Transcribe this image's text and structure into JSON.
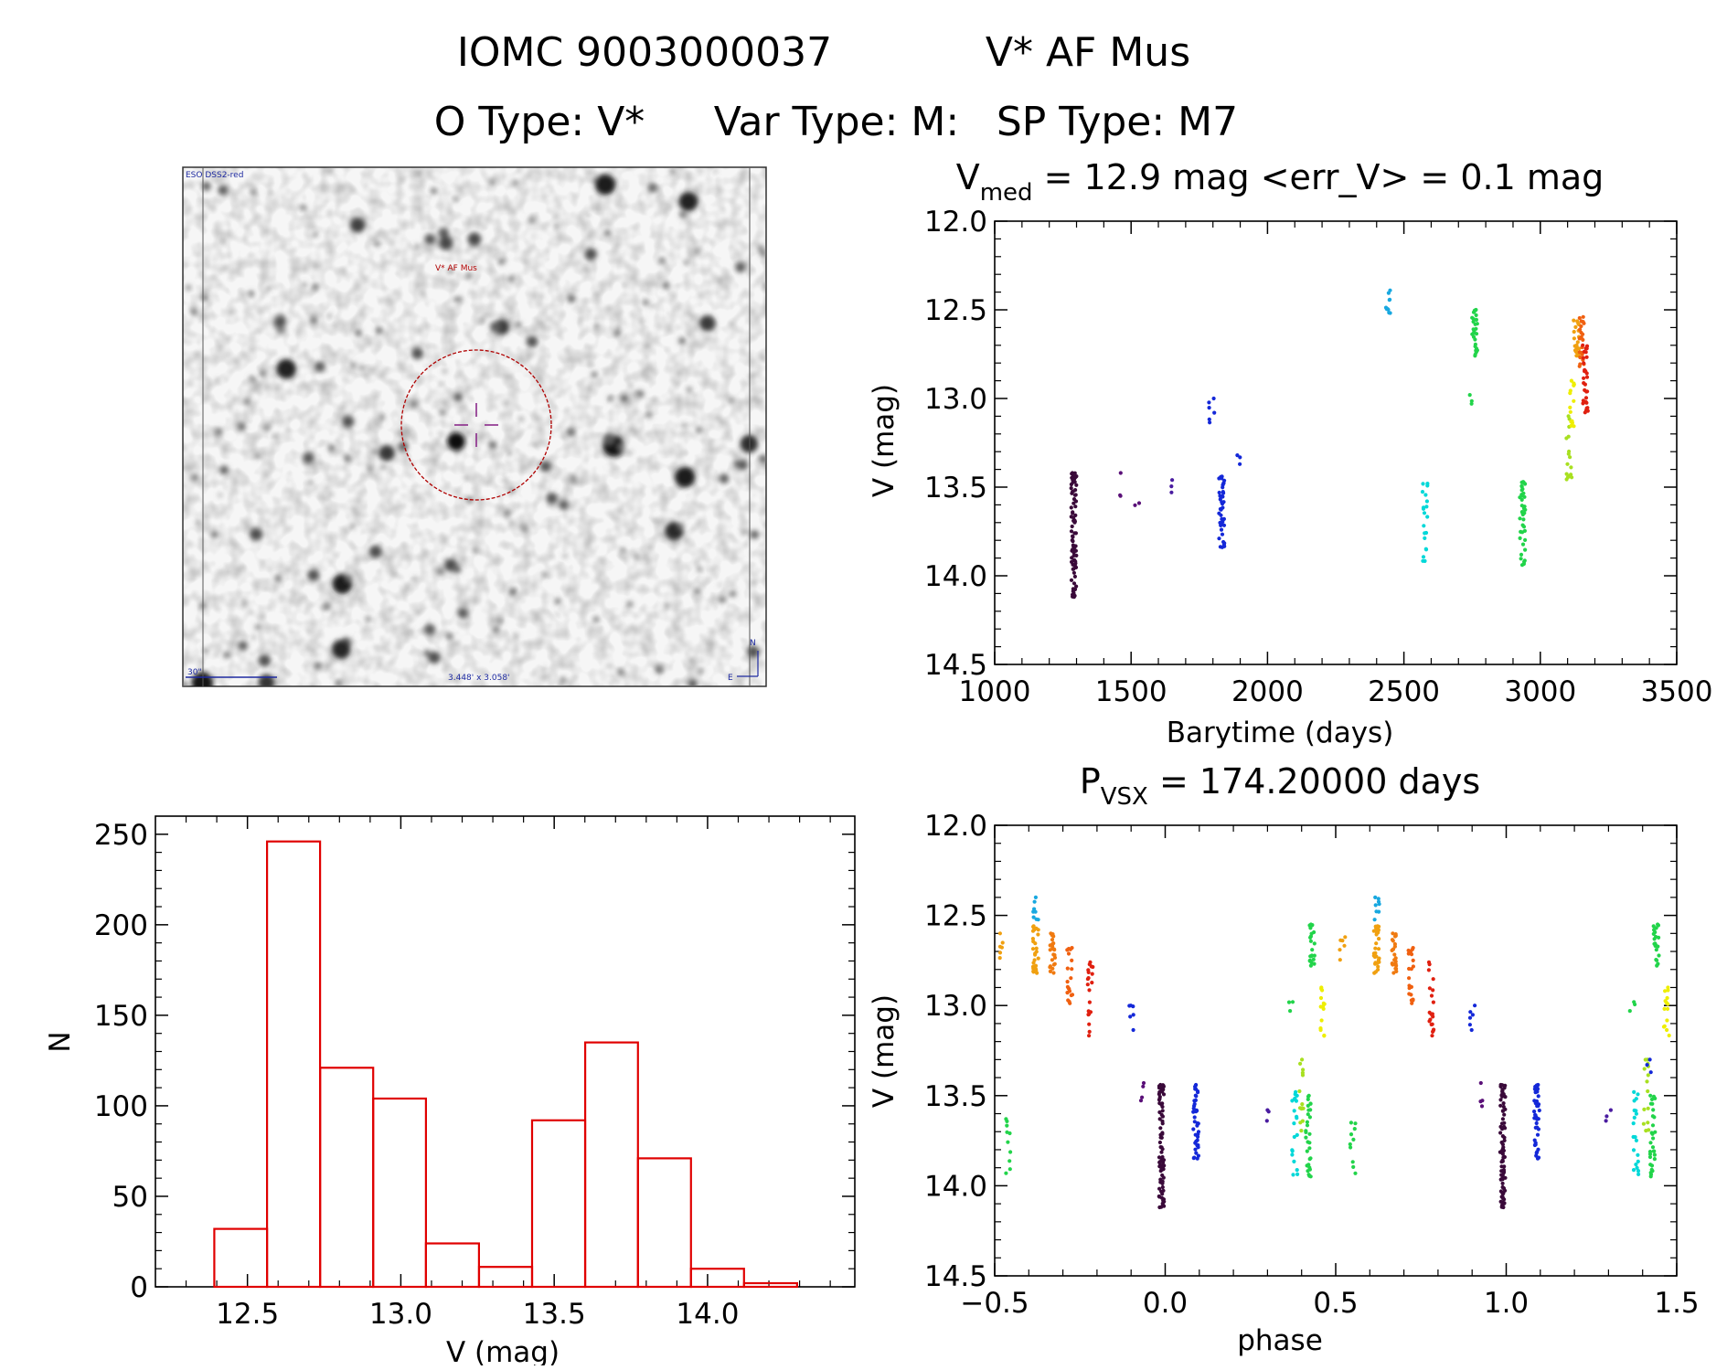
{
  "header": {
    "title_left": "IOMC 9003000037",
    "title_right": "V* AF Mus",
    "types": {
      "o_type": "O Type: V*",
      "var_type": "Var Type: M:",
      "sp_type": "SP Type: M7"
    }
  },
  "finder": {
    "survey_label": "ESO DSS2-red",
    "target_label": "V* AF Mus",
    "scale_label": "30\"",
    "fov_label": "3.448' x 3.058'",
    "north_label": "N",
    "east_label": "E"
  },
  "colors": {
    "histogram": "#e00000",
    "circle": "#b00000",
    "crosshair": "#8a2a8a",
    "annotation_blue": "#1e2aa0"
  },
  "chart_data": [
    {
      "type": "scatter",
      "title_main": "V",
      "title_sub": "med",
      "title_rest": " = 12.9 mag <err_V> = 0.1 mag",
      "xlabel": "Barytime (days)",
      "ylabel": "V (mag)",
      "xlim": [
        1000,
        3500
      ],
      "ylim": [
        14.5,
        12.0
      ],
      "y_inverted": true,
      "xticks": [
        "1000",
        "1500",
        "2000",
        "2500",
        "3000",
        "3500"
      ],
      "yticks": [
        "12.0",
        "12.5",
        "13.0",
        "13.5",
        "14.0",
        "14.5"
      ],
      "groups": [
        {
          "x": 1290,
          "ymin": 13.42,
          "ymax": 14.12,
          "n": 80,
          "color": "#3a0a3a"
        },
        {
          "x": 1455,
          "ymin": 13.42,
          "ymax": 13.55,
          "n": 3,
          "color": "#5a1078"
        },
        {
          "x": 1520,
          "ymin": 13.59,
          "ymax": 13.62,
          "n": 2,
          "color": "#5a1078"
        },
        {
          "x": 1655,
          "ymin": 13.46,
          "ymax": 13.53,
          "n": 3,
          "color": "#4a1ca0"
        },
        {
          "x": 1795,
          "ymin": 13.0,
          "ymax": 13.15,
          "n": 6,
          "color": "#1428d8"
        },
        {
          "x": 1832,
          "ymin": 13.44,
          "ymax": 13.84,
          "n": 40,
          "color": "#1428d8"
        },
        {
          "x": 1890,
          "ymin": 13.32,
          "ymax": 13.37,
          "n": 3,
          "color": "#1428d8"
        },
        {
          "x": 2442,
          "ymin": 12.39,
          "ymax": 12.52,
          "n": 10,
          "color": "#18a8e0"
        },
        {
          "x": 2578,
          "ymin": 13.48,
          "ymax": 13.92,
          "n": 20,
          "color": "#00d8d8"
        },
        {
          "x": 2742,
          "ymin": 12.98,
          "ymax": 13.03,
          "n": 3,
          "color": "#22d44a"
        },
        {
          "x": 2760,
          "ymin": 12.5,
          "ymax": 12.76,
          "n": 28,
          "color": "#22d44a"
        },
        {
          "x": 2935,
          "ymin": 13.47,
          "ymax": 13.94,
          "n": 40,
          "color": "#22d44a"
        },
        {
          "x": 3105,
          "ymin": 13.1,
          "ymax": 13.46,
          "n": 16,
          "color": "#a8e020"
        },
        {
          "x": 3115,
          "ymin": 12.9,
          "ymax": 13.16,
          "n": 14,
          "color": "#eeee00"
        },
        {
          "x": 3132,
          "ymin": 12.56,
          "ymax": 12.76,
          "n": 22,
          "color": "#f0a010"
        },
        {
          "x": 3150,
          "ymin": 12.54,
          "ymax": 12.82,
          "n": 22,
          "color": "#f06010"
        },
        {
          "x": 3165,
          "ymin": 12.7,
          "ymax": 13.08,
          "n": 30,
          "color": "#e02010"
        }
      ]
    },
    {
      "type": "bar",
      "xlabel": "V (mag)",
      "ylabel": "N",
      "xlim": [
        12.2,
        14.48
      ],
      "ylim": [
        0,
        260
      ],
      "xticks": [
        "12.5",
        "13.0",
        "13.5",
        "14.0"
      ],
      "yticks": [
        "0",
        "50",
        "100",
        "150",
        "200",
        "250"
      ],
      "bin_edges": [
        12.392,
        12.564,
        12.737,
        12.91,
        13.082,
        13.255,
        13.428,
        13.601,
        13.773,
        13.946,
        14.119,
        14.292
      ],
      "values": [
        32,
        246,
        121,
        104,
        24,
        11,
        92,
        135,
        71,
        10,
        2
      ]
    },
    {
      "type": "scatter",
      "title_main": "P",
      "title_sub": "VSX",
      "title_rest": " = 174.20000 days",
      "xlabel": "phase",
      "ylabel": "V (mag)",
      "xlim": [
        -0.5,
        1.5
      ],
      "ylim": [
        14.5,
        12.0
      ],
      "y_inverted": true,
      "xticks": [
        "−0.5",
        "0.0",
        "0.5",
        "1.0",
        "1.5"
      ],
      "yticks": [
        "12.0",
        "12.5",
        "13.0",
        "13.5",
        "14.0",
        "14.5"
      ],
      "groups": [
        {
          "x": -0.48,
          "ymin": 12.6,
          "ymax": 12.75,
          "n": 6,
          "color": "#f0a010"
        },
        {
          "x": -0.46,
          "ymin": 13.63,
          "ymax": 13.94,
          "n": 10,
          "color": "#22d44a"
        },
        {
          "x": -0.38,
          "ymin": 12.4,
          "ymax": 12.53,
          "n": 8,
          "color": "#18a8e0"
        },
        {
          "x": -0.38,
          "ymin": 12.56,
          "ymax": 12.82,
          "n": 30,
          "color": "#f0a010"
        },
        {
          "x": -0.33,
          "ymin": 12.6,
          "ymax": 12.82,
          "n": 24,
          "color": "#f07a10"
        },
        {
          "x": -0.28,
          "ymin": 12.68,
          "ymax": 12.99,
          "n": 20,
          "color": "#f06010"
        },
        {
          "x": -0.22,
          "ymin": 12.76,
          "ymax": 13.17,
          "n": 20,
          "color": "#e02010"
        },
        {
          "x": -0.1,
          "ymin": 13.0,
          "ymax": 13.15,
          "n": 6,
          "color": "#1428d8"
        },
        {
          "x": -0.07,
          "ymin": 13.43,
          "ymax": 13.56,
          "n": 4,
          "color": "#5a1078"
        },
        {
          "x": -0.01,
          "ymin": 13.44,
          "ymax": 14.12,
          "n": 80,
          "color": "#3a0a3a"
        },
        {
          "x": 0.09,
          "ymin": 13.44,
          "ymax": 13.85,
          "n": 40,
          "color": "#1428d8"
        },
        {
          "x": 0.3,
          "ymin": 13.58,
          "ymax": 13.64,
          "n": 3,
          "color": "#4a1ca0"
        },
        {
          "x": 0.37,
          "ymin": 12.98,
          "ymax": 13.03,
          "n": 3,
          "color": "#22d44a"
        },
        {
          "x": 0.38,
          "ymin": 13.48,
          "ymax": 13.94,
          "n": 20,
          "color": "#00d8d8"
        },
        {
          "x": 0.4,
          "ymin": 13.3,
          "ymax": 13.7,
          "n": 14,
          "color": "#a8e020"
        },
        {
          "x": 0.42,
          "ymin": 13.5,
          "ymax": 13.95,
          "n": 30,
          "color": "#22d44a"
        },
        {
          "x": 0.43,
          "ymin": 12.55,
          "ymax": 12.78,
          "n": 22,
          "color": "#22d44a"
        },
        {
          "x": 0.46,
          "ymin": 12.9,
          "ymax": 13.17,
          "n": 14,
          "color": "#eeee00"
        },
        {
          "x": 0.55,
          "ymin": 13.65,
          "ymax": 13.94,
          "n": 10,
          "color": "#22d44a"
        },
        {
          "x": 0.52,
          "ymin": 12.62,
          "ymax": 12.76,
          "n": 6,
          "color": "#f0a010"
        },
        {
          "x": 0.62,
          "ymin": 12.4,
          "ymax": 12.53,
          "n": 8,
          "color": "#18a8e0"
        },
        {
          "x": 0.62,
          "ymin": 12.56,
          "ymax": 12.82,
          "n": 30,
          "color": "#f0a010"
        },
        {
          "x": 0.67,
          "ymin": 12.6,
          "ymax": 12.82,
          "n": 24,
          "color": "#f07a10"
        },
        {
          "x": 0.72,
          "ymin": 12.68,
          "ymax": 12.99,
          "n": 20,
          "color": "#f06010"
        },
        {
          "x": 0.78,
          "ymin": 12.76,
          "ymax": 13.17,
          "n": 20,
          "color": "#e02010"
        },
        {
          "x": 0.9,
          "ymin": 13.0,
          "ymax": 13.15,
          "n": 6,
          "color": "#1428d8"
        },
        {
          "x": 0.93,
          "ymin": 13.43,
          "ymax": 13.56,
          "n": 4,
          "color": "#5a1078"
        },
        {
          "x": 0.99,
          "ymin": 13.44,
          "ymax": 14.12,
          "n": 80,
          "color": "#3a0a3a"
        },
        {
          "x": 1.09,
          "ymin": 13.44,
          "ymax": 13.85,
          "n": 40,
          "color": "#1428d8"
        },
        {
          "x": 1.3,
          "ymin": 13.58,
          "ymax": 13.64,
          "n": 3,
          "color": "#4a1ca0"
        },
        {
          "x": 1.37,
          "ymin": 12.98,
          "ymax": 13.03,
          "n": 3,
          "color": "#22d44a"
        },
        {
          "x": 1.38,
          "ymin": 13.48,
          "ymax": 13.94,
          "n": 20,
          "color": "#00d8d8"
        },
        {
          "x": 1.41,
          "ymin": 13.3,
          "ymax": 13.7,
          "n": 14,
          "color": "#a8e020"
        },
        {
          "x": 1.43,
          "ymin": 13.5,
          "ymax": 13.95,
          "n": 30,
          "color": "#22d44a"
        },
        {
          "x": 1.44,
          "ymin": 12.55,
          "ymax": 12.78,
          "n": 22,
          "color": "#22d44a"
        },
        {
          "x": 1.47,
          "ymin": 12.9,
          "ymax": 13.17,
          "n": 14,
          "color": "#eeee00"
        },
        {
          "x": 1.42,
          "ymin": 13.3,
          "ymax": 13.37,
          "n": 3,
          "color": "#1428d8"
        }
      ]
    }
  ]
}
